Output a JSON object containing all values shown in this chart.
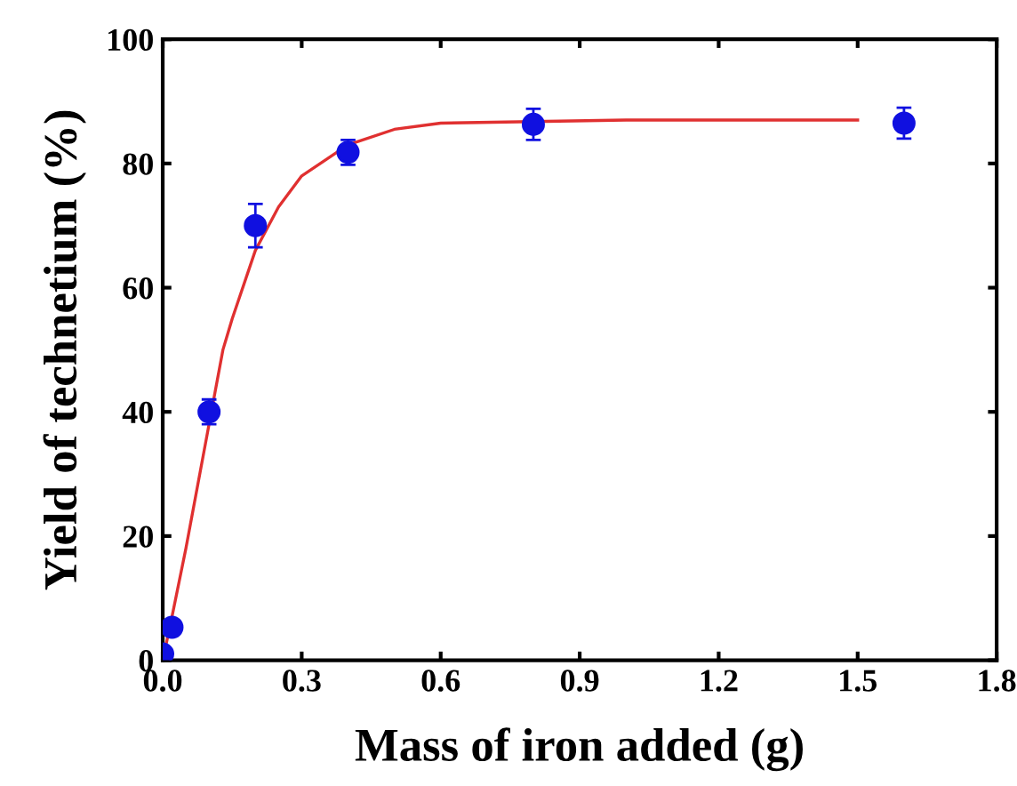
{
  "chart_data": {
    "type": "scatter",
    "xlabel": "Mass of iron added (g)",
    "ylabel": "Yield of technetium (%)",
    "xlim": [
      0,
      1.8
    ],
    "ylim": [
      0,
      100
    ],
    "xticks": [
      {
        "value": 0,
        "label": "0.0"
      },
      0.3,
      0.6,
      0.9,
      1.2,
      1.5,
      1.8
    ],
    "yticks": [
      0,
      20,
      40,
      60,
      80,
      100
    ],
    "grid": false,
    "series": [
      {
        "type": "line",
        "color": "#e03030",
        "marker": "none",
        "x": [
          0,
          0.02,
          0.05,
          0.13,
          0.15,
          0.2,
          0.25,
          0.3,
          0.4,
          0.5,
          0.6,
          1.0,
          1.2,
          1.5
        ],
        "values": [
          0,
          7,
          18,
          50,
          55,
          66,
          73,
          78,
          83,
          85.5,
          86.5,
          87,
          87,
          87
        ]
      },
      {
        "color": "#1010e0",
        "marker": "circle",
        "x": [
          0,
          0.02,
          0.1,
          0.2,
          0.4,
          0.8,
          1.6
        ],
        "values": [
          1,
          5.3,
          40,
          70,
          81.8,
          86.3,
          86.5
        ],
        "errors": [
          null,
          1,
          2,
          3.5,
          2,
          2.5,
          2.5
        ]
      }
    ]
  }
}
